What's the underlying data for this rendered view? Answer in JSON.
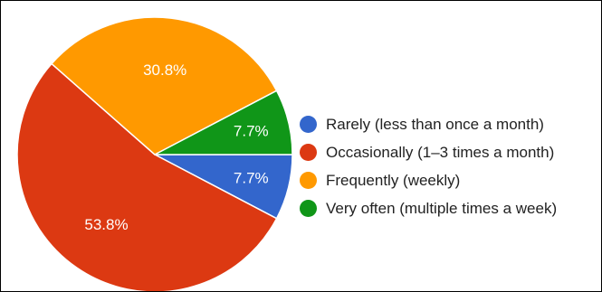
{
  "chart_data": {
    "type": "pie",
    "slices": [
      {
        "label": "Rarely (less than once a month)",
        "value": 7.7,
        "display": "7.7%",
        "color": "#3366cc"
      },
      {
        "label": "Occasionally (1–3 times a month)",
        "value": 53.8,
        "display": "53.8%",
        "color": "#dc3912"
      },
      {
        "label": "Frequently (weekly)",
        "value": 30.8,
        "display": "30.8%",
        "color": "#ff9900"
      },
      {
        "label": "Very often (multiple times a week)",
        "value": 7.7,
        "display": "7.7%",
        "color": "#109618"
      }
    ],
    "legend_position": "right"
  }
}
